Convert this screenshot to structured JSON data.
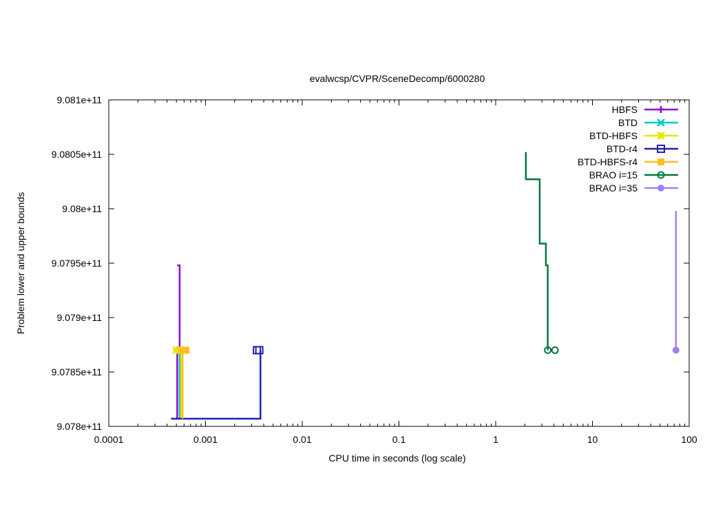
{
  "chart_data": {
    "type": "line",
    "title": "evalwcsp/CVPR/SceneDecomp/6000280",
    "xlabel": "CPU time in seconds (log scale)",
    "ylabel": "Problem lower and upper bounds",
    "xscale": "log",
    "xlim": [
      0.0001,
      100
    ],
    "ylim": [
      907800000000,
      908100000000
    ],
    "grid": false,
    "legend_position": "top-right",
    "x_ticks": [
      {
        "value": 0.0001,
        "label": "0.0001"
      },
      {
        "value": 0.001,
        "label": "0.001"
      },
      {
        "value": 0.01,
        "label": "0.01"
      },
      {
        "value": 0.1,
        "label": "0.1"
      },
      {
        "value": 1,
        "label": "1"
      },
      {
        "value": 10,
        "label": "10"
      },
      {
        "value": 100,
        "label": "100"
      }
    ],
    "y_ticks": [
      {
        "value": 907800000000,
        "label": "9.078e+11"
      },
      {
        "value": 907850000000,
        "label": "9.0785e+11"
      },
      {
        "value": 907900000000,
        "label": "9.079e+11"
      },
      {
        "value": 907950000000,
        "label": "9.0795e+11"
      },
      {
        "value": 908000000000,
        "label": "9.08e+11"
      },
      {
        "value": 908050000000,
        "label": "9.0805e+11"
      },
      {
        "value": 908100000000,
        "label": "9.081e+11"
      }
    ],
    "series": [
      {
        "name": "HBFS",
        "color": "#9400d3",
        "marker": "plus",
        "lines": [
          [
            [
              0.00051,
              907948000000
            ],
            [
              0.00054,
              907948000000
            ],
            [
              0.00054,
              907870000000
            ]
          ],
          [
            [
              0.00051,
              907807000000
            ],
            [
              0.00051,
              907870000000
            ]
          ]
        ],
        "markers": [
          [
            0.00052,
            907870000000
          ]
        ]
      },
      {
        "name": "BTD",
        "color": "#00c8c8",
        "marker": "cross",
        "lines": [
          [
            [
              0.00054,
              907807000000
            ],
            [
              0.00054,
              907870000000
            ]
          ]
        ],
        "markers": [
          [
            0.00055,
            907870000000
          ]
        ]
      },
      {
        "name": "BTD-HBFS",
        "color": "#e6e600",
        "marker": "star",
        "lines": [
          [
            [
              0.00056,
              907807000000
            ],
            [
              0.00056,
              907870000000
            ]
          ]
        ],
        "markers": [
          [
            0.0005,
            907870000000
          ],
          [
            0.00054,
            907870000000
          ]
        ]
      },
      {
        "name": "BTD-r4",
        "color": "#2020b0",
        "marker": "square-open",
        "lines": [
          [
            [
              0.00044,
              907807000000
            ],
            [
              0.0037,
              907807000000
            ],
            [
              0.0037,
              907870000000
            ]
          ]
        ],
        "markers": [
          [
            0.0034,
            907870000000
          ],
          [
            0.0036,
            907870000000
          ]
        ]
      },
      {
        "name": "BTD-HBFS-r4",
        "color": "#ffc020",
        "marker": "square-filled",
        "lines": [
          [
            [
              0.00058,
              907807000000
            ],
            [
              0.00058,
              907870000000
            ]
          ]
        ],
        "markers": [
          [
            0.00057,
            907870000000
          ],
          [
            0.00063,
            907870000000
          ]
        ]
      },
      {
        "name": "BRAO i=15",
        "color": "#007840",
        "marker": "circle-open",
        "lines": [
          [
            [
              2.05,
              908052000000
            ],
            [
              2.05,
              908027000000
            ],
            [
              2.85,
              908027000000
            ],
            [
              2.85,
              907968000000
            ],
            [
              3.3,
              907968000000
            ],
            [
              3.3,
              907948000000
            ],
            [
              3.45,
              907948000000
            ],
            [
              3.45,
              907870000000
            ]
          ]
        ],
        "markers": [
          [
            3.45,
            907870000000
          ],
          [
            4.1,
            907870000000
          ]
        ]
      },
      {
        "name": "BRAO i=35",
        "color": "#9f80f0",
        "marker": "circle-filled",
        "lines": [
          [
            [
              73,
              907998000000
            ],
            [
              73,
              907870000000
            ]
          ]
        ],
        "markers": [
          [
            73,
            907870000000
          ]
        ]
      }
    ]
  }
}
